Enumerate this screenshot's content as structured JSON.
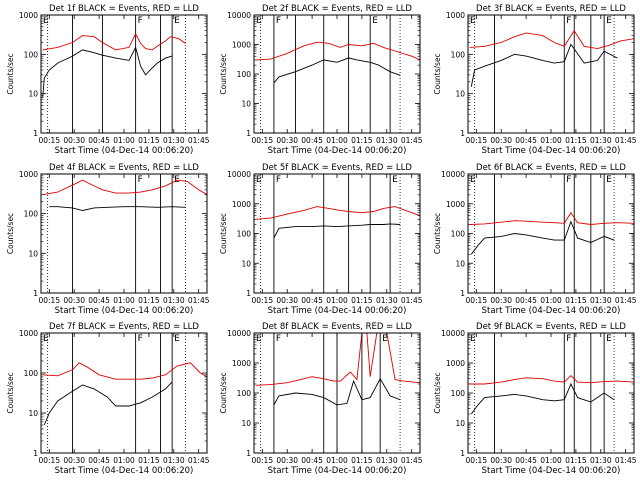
{
  "colors": {
    "events": "#000000",
    "lld": "#e00000",
    "axis": "#000000",
    "background": "#ffffff"
  },
  "xtick_labels": [
    "00:15",
    "00:30",
    "00:45",
    "01:00",
    "01:15",
    "01:30",
    "01:45"
  ],
  "ytick_labels": [
    "1",
    "10",
    "100",
    "1000",
    "10000"
  ],
  "chart_data": [
    {
      "title": "Det 1f BLACK = Events, RED = LLD",
      "type": "line",
      "ylabel": "Counts/sec",
      "xlabel": "Start Time (04-Dec-14 00:06:20)",
      "xlim": [
        10,
        110
      ],
      "ylim": [
        1,
        1000
      ],
      "solid_lines": [
        29,
        47,
        67,
        82,
        89
      ],
      "dotted_lines": [
        14,
        97
      ],
      "markers": [
        {
          "text": "E",
          "x": 10
        },
        {
          "text": "F",
          "x": 67
        },
        {
          "text": "E",
          "x": 89
        }
      ],
      "series": [
        {
          "name": "LLD",
          "color": "#e00000",
          "x": [
            11,
            20,
            29,
            35,
            42,
            47,
            55,
            63,
            67,
            70,
            73,
            77,
            80,
            85,
            88,
            93,
            97
          ],
          "y": [
            130,
            150,
            200,
            300,
            280,
            200,
            130,
            150,
            330,
            190,
            140,
            130,
            160,
            220,
            280,
            250,
            190
          ]
        },
        {
          "name": "Events",
          "color": "#000000",
          "x": [
            11,
            12,
            15,
            20,
            29,
            35,
            42,
            47,
            55,
            63,
            67,
            70,
            73,
            77,
            80,
            85,
            89
          ],
          "y": [
            8,
            25,
            40,
            60,
            90,
            130,
            110,
            95,
            80,
            70,
            150,
            50,
            30,
            45,
            60,
            80,
            90
          ]
        }
      ]
    },
    {
      "title": "Det 2f BLACK = Events, RED = LLD",
      "type": "line",
      "ylabel": "Counts/sec",
      "xlabel": "Start Time (04-Dec-14 00:06:20)",
      "xlim": [
        10,
        110
      ],
      "ylim": [
        1,
        10000
      ],
      "solid_lines": [
        22,
        35,
        52,
        67,
        80,
        92
      ],
      "dotted_lines": [
        14,
        98
      ],
      "markers": [
        {
          "text": "E",
          "x": 10
        },
        {
          "text": "F",
          "x": 22
        },
        {
          "text": "E",
          "x": 80
        }
      ],
      "series": [
        {
          "name": "LLD",
          "color": "#e00000",
          "x": [
            11,
            20,
            30,
            40,
            48,
            55,
            62,
            67,
            75,
            82,
            88,
            95,
            105,
            110
          ],
          "y": [
            300,
            320,
            500,
            900,
            1200,
            1100,
            800,
            1000,
            900,
            1100,
            800,
            600,
            400,
            300
          ]
        },
        {
          "name": "Events",
          "color": "#000000",
          "x": [
            22,
            25,
            35,
            45,
            52,
            60,
            67,
            72,
            80,
            85,
            92,
            98
          ],
          "y": [
            50,
            80,
            120,
            200,
            300,
            250,
            350,
            300,
            250,
            200,
            120,
            90
          ]
        }
      ]
    },
    {
      "title": "Det 3f BLACK = Events, RED = LLD",
      "type": "line",
      "ylabel": "Counts/sec",
      "xlabel": "Start Time (04-Dec-14 00:06:20)",
      "xlim": [
        10,
        110
      ],
      "ylim": [
        1,
        1000
      ],
      "solid_lines": [
        26,
        68,
        74,
        84,
        92
      ],
      "dotted_lines": [
        14,
        98
      ],
      "markers": [
        {
          "text": "E",
          "x": 10
        },
        {
          "text": "F",
          "x": 68
        },
        {
          "text": "E",
          "x": 92
        }
      ],
      "series": [
        {
          "name": "LLD",
          "color": "#e00000",
          "x": [
            11,
            20,
            30,
            38,
            45,
            55,
            62,
            68,
            74,
            80,
            88,
            95,
            102,
            110
          ],
          "y": [
            150,
            160,
            200,
            280,
            350,
            300,
            200,
            160,
            400,
            160,
            140,
            170,
            220,
            250
          ]
        },
        {
          "name": "Events",
          "color": "#000000",
          "x": [
            12,
            14,
            20,
            30,
            38,
            45,
            55,
            62,
            68,
            72,
            80,
            88,
            92,
            100
          ],
          "y": [
            15,
            40,
            50,
            70,
            100,
            90,
            70,
            60,
            65,
            180,
            60,
            70,
            120,
            80
          ]
        }
      ]
    },
    {
      "title": "Det 4f BLACK = Events, RED = LLD",
      "type": "line",
      "ylabel": "Counts/sec",
      "xlabel": "Start Time (04-Dec-14 00:06:20)",
      "xlim": [
        10,
        110
      ],
      "ylim": [
        1,
        1000
      ],
      "solid_lines": [
        29,
        67,
        82,
        89
      ],
      "dotted_lines": [
        14,
        97
      ],
      "markers": [
        {
          "text": "F",
          "x": 67
        },
        {
          "text": "E",
          "x": 89
        }
      ],
      "series": [
        {
          "name": "LLD",
          "color": "#e00000",
          "x": [
            11,
            20,
            30,
            35,
            42,
            47,
            55,
            63,
            70,
            77,
            85,
            92,
            98,
            105,
            110
          ],
          "y": [
            300,
            350,
            550,
            700,
            500,
            400,
            330,
            330,
            350,
            400,
            500,
            700,
            650,
            400,
            300
          ]
        },
        {
          "name": "Events",
          "color": "#000000",
          "x": [
            15,
            20,
            29,
            35,
            42,
            50,
            60,
            70,
            80,
            89,
            97
          ],
          "y": [
            150,
            150,
            140,
            120,
            140,
            145,
            150,
            150,
            145,
            150,
            145
          ]
        }
      ]
    },
    {
      "title": "Det 5f BLACK = Events, RED = LLD",
      "type": "line",
      "ylabel": "Counts/sec",
      "xlabel": "Start Time (04-Dec-14 00:06:20)",
      "xlim": [
        10,
        110
      ],
      "ylim": [
        1,
        10000
      ],
      "solid_lines": [
        22,
        52,
        67,
        80,
        92
      ],
      "dotted_lines": [
        14,
        98
      ],
      "markers": [
        {
          "text": "E",
          "x": 10
        },
        {
          "text": "F",
          "x": 22
        },
        {
          "text": "E",
          "x": 92
        }
      ],
      "series": [
        {
          "name": "LLD",
          "color": "#e00000",
          "x": [
            11,
            20,
            30,
            40,
            48,
            55,
            62,
            67,
            75,
            82,
            88,
            95,
            105,
            110
          ],
          "y": [
            300,
            330,
            450,
            600,
            800,
            700,
            600,
            550,
            500,
            550,
            700,
            800,
            500,
            400
          ]
        },
        {
          "name": "Events",
          "color": "#000000",
          "x": [
            22,
            25,
            35,
            45,
            52,
            60,
            67,
            75,
            80,
            88,
            92,
            98
          ],
          "y": [
            70,
            150,
            170,
            170,
            180,
            170,
            180,
            190,
            200,
            200,
            210,
            200
          ]
        }
      ]
    },
    {
      "title": "Det 6f BLACK = Events, RED = LLD",
      "type": "line",
      "ylabel": "Counts/sec",
      "xlabel": "Start Time (04-Dec-14 00:06:20)",
      "xlim": [
        10,
        110
      ],
      "ylim": [
        1,
        10000
      ],
      "solid_lines": [
        26,
        68,
        74,
        84,
        92
      ],
      "dotted_lines": [
        14,
        98
      ],
      "markers": [
        {
          "text": "E",
          "x": 10
        },
        {
          "text": "F",
          "x": 68
        },
        {
          "text": "E",
          "x": 92
        }
      ],
      "series": [
        {
          "name": "LLD",
          "color": "#e00000",
          "x": [
            11,
            20,
            30,
            38,
            45,
            55,
            62,
            68,
            72,
            76,
            84,
            92,
            100,
            110
          ],
          "y": [
            200,
            210,
            240,
            270,
            260,
            240,
            230,
            220,
            500,
            230,
            200,
            220,
            230,
            220
          ]
        },
        {
          "name": "Events",
          "color": "#000000",
          "x": [
            12,
            16,
            20,
            30,
            38,
            45,
            55,
            62,
            68,
            72,
            76,
            84,
            92,
            98
          ],
          "y": [
            20,
            40,
            70,
            80,
            100,
            90,
            70,
            60,
            60,
            250,
            70,
            50,
            80,
            60
          ]
        }
      ]
    },
    {
      "title": "Det 7f BLACK = Events, RED = LLD",
      "type": "line",
      "ylabel": "Counts/sec",
      "xlabel": "Start Time (04-Dec-14 00:06:20)",
      "xlim": [
        10,
        110
      ],
      "ylim": [
        1,
        1000
      ],
      "solid_lines": [
        29,
        67,
        82,
        89
      ],
      "dotted_lines": [
        14,
        97
      ],
      "markers": [
        {
          "text": "E",
          "x": 10
        },
        {
          "text": "F",
          "x": 67
        },
        {
          "text": "E",
          "x": 89
        }
      ],
      "series": [
        {
          "name": "LLD",
          "color": "#e00000",
          "x": [
            11,
            20,
            29,
            33,
            38,
            45,
            55,
            63,
            70,
            77,
            85,
            92,
            100,
            106,
            110
          ],
          "y": [
            90,
            85,
            120,
            180,
            140,
            90,
            70,
            70,
            70,
            75,
            90,
            150,
            180,
            100,
            80
          ]
        },
        {
          "name": "Events",
          "color": "#000000",
          "x": [
            12,
            15,
            20,
            29,
            35,
            42,
            50,
            55,
            63,
            70,
            77,
            85,
            89
          ],
          "y": [
            5,
            10,
            20,
            35,
            50,
            40,
            25,
            15,
            15,
            18,
            25,
            40,
            60
          ]
        }
      ]
    },
    {
      "title": "Det 8f BLACK = Events, RED = LLD",
      "type": "line",
      "ylabel": "Counts/sec",
      "xlabel": "Start Time (04-Dec-14 00:06:20)",
      "xlim": [
        10,
        110
      ],
      "ylim": [
        1,
        10000
      ],
      "solid_lines": [
        22,
        52,
        60,
        75,
        86
      ],
      "dotted_lines": [
        14,
        98
      ],
      "markers": [
        {
          "text": "E",
          "x": 10
        },
        {
          "text": "F",
          "x": 22
        },
        {
          "text": "E",
          "x": 86
        }
      ],
      "series": [
        {
          "name": "LLD",
          "color": "#e00000",
          "x": [
            11,
            20,
            30,
            38,
            45,
            52,
            58,
            62,
            68,
            72,
            75,
            78,
            80,
            84,
            86,
            90,
            95,
            100,
            110
          ],
          "y": [
            180,
            190,
            220,
            280,
            350,
            300,
            250,
            250,
            500,
            280,
            10000,
            10000,
            350,
            10000,
            10000,
            10000,
            280,
            250,
            220
          ]
        },
        {
          "name": "Events",
          "color": "#000000",
          "x": [
            22,
            25,
            35,
            45,
            52,
            60,
            66,
            70,
            75,
            80,
            86,
            92,
            98
          ],
          "y": [
            40,
            80,
            100,
            90,
            70,
            40,
            45,
            250,
            60,
            70,
            300,
            80,
            60
          ]
        }
      ]
    },
    {
      "title": "Det 9f BLACK = Events, RED = LLD",
      "type": "line",
      "ylabel": "Counts/sec",
      "xlabel": "Start Time (04-Dec-14 00:06:20)",
      "xlim": [
        10,
        110
      ],
      "ylim": [
        1,
        10000
      ],
      "solid_lines": [
        26,
        68,
        74,
        84,
        92
      ],
      "dotted_lines": [
        14,
        98
      ],
      "markers": [
        {
          "text": "E",
          "x": 10
        },
        {
          "text": "F",
          "x": 68
        },
        {
          "text": "E",
          "x": 92
        }
      ],
      "series": [
        {
          "name": "LLD",
          "color": "#e00000",
          "x": [
            11,
            20,
            30,
            38,
            45,
            55,
            62,
            68,
            72,
            76,
            84,
            92,
            100,
            110
          ],
          "y": [
            200,
            200,
            230,
            280,
            320,
            300,
            250,
            230,
            380,
            230,
            220,
            240,
            250,
            230
          ]
        },
        {
          "name": "Events",
          "color": "#000000",
          "x": [
            12,
            16,
            20,
            30,
            38,
            45,
            55,
            62,
            68,
            72,
            76,
            84,
            92,
            98
          ],
          "y": [
            20,
            40,
            70,
            80,
            90,
            80,
            60,
            55,
            60,
            200,
            70,
            50,
            100,
            60
          ]
        }
      ]
    }
  ]
}
